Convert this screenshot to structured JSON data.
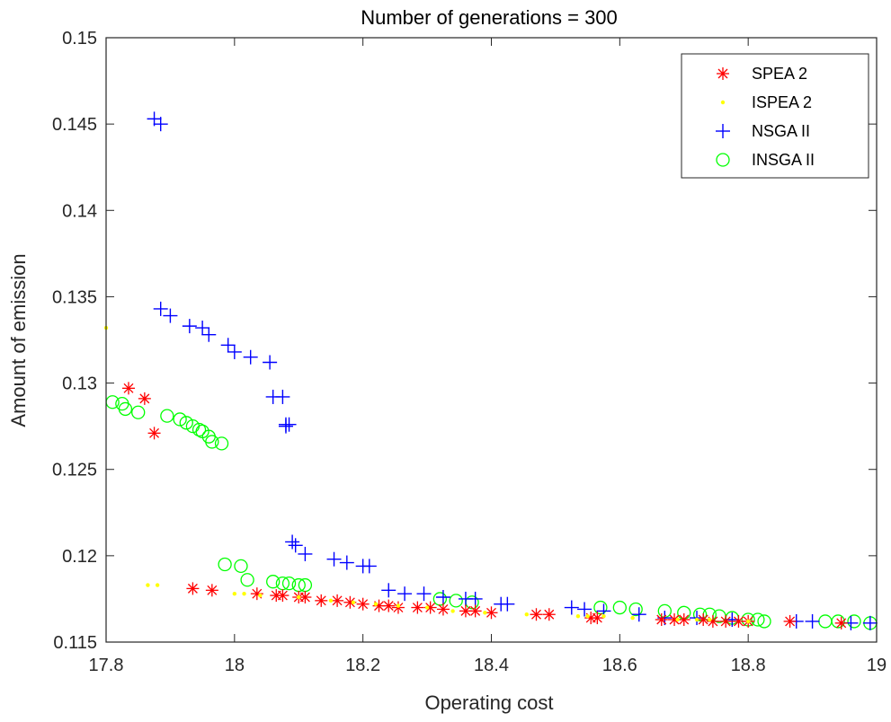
{
  "chart_data": {
    "type": "scatter",
    "title": "Number of generations = 300",
    "xlabel": "Operating cost",
    "ylabel": "Amount of emission",
    "xlim": [
      17.8,
      19
    ],
    "ylim": [
      0.115,
      0.15
    ],
    "xticks": [
      "17.8",
      "18",
      "18.2",
      "18.4",
      "18.6",
      "18.8",
      "19"
    ],
    "yticks": [
      "0.115",
      "0.12",
      "0.125",
      "0.13",
      "0.135",
      "0.14",
      "0.145",
      "0.15"
    ],
    "grid": false,
    "legend_position": "top-right",
    "series": [
      {
        "name": "SPEA 2",
        "marker": "asterisk",
        "color": "#ff0000",
        "x": [
          17.835,
          17.86,
          17.875,
          17.935,
          17.965,
          18.035,
          18.065,
          18.075,
          18.1,
          18.11,
          18.135,
          18.16,
          18.18,
          18.2,
          18.225,
          18.24,
          18.255,
          18.285,
          18.305,
          18.325,
          18.36,
          18.375,
          18.4,
          18.47,
          18.49,
          18.555,
          18.565,
          18.665,
          18.685,
          18.7,
          18.73,
          18.745,
          18.765,
          18.785,
          18.8,
          18.865,
          18.945
        ],
        "y": [
          0.1297,
          0.1291,
          0.1271,
          0.1181,
          0.118,
          0.1178,
          0.1177,
          0.1177,
          0.1176,
          0.1176,
          0.1174,
          0.1174,
          0.1173,
          0.1172,
          0.1171,
          0.1171,
          0.117,
          0.117,
          0.117,
          0.1169,
          0.1168,
          0.1168,
          0.1167,
          0.1166,
          0.1166,
          0.1164,
          0.1164,
          0.1163,
          0.1163,
          0.1163,
          0.1163,
          0.1162,
          0.1162,
          0.1162,
          0.1162,
          0.1162,
          0.1161
        ]
      },
      {
        "name": "ISPEA 2",
        "marker": "dot",
        "color": "#ffff00",
        "x": [
          17.8,
          17.865,
          17.88,
          18.0,
          18.015,
          18.04,
          18.1,
          18.15,
          18.185,
          18.22,
          18.255,
          18.3,
          18.34,
          18.39,
          18.455,
          18.535,
          18.55,
          18.575,
          18.62,
          18.69,
          18.72,
          18.74,
          18.8
        ],
        "y": [
          0.1332,
          0.1183,
          0.1183,
          0.1178,
          0.1178,
          0.1177,
          0.1176,
          0.1174,
          0.1173,
          0.1172,
          0.1171,
          0.117,
          0.1168,
          0.1167,
          0.1166,
          0.1165,
          0.1165,
          0.1165,
          0.1164,
          0.1163,
          0.1163,
          0.1163,
          0.1162
        ]
      },
      {
        "name": "NSGA II",
        "marker": "plus",
        "color": "#0000ff",
        "x": [
          17.875,
          17.885,
          17.885,
          17.9,
          17.93,
          17.95,
          17.96,
          17.99,
          18.0,
          18.025,
          18.055,
          18.06,
          18.075,
          18.08,
          18.08,
          18.085,
          18.09,
          18.095,
          18.11,
          18.155,
          18.175,
          18.2,
          18.21,
          18.24,
          18.265,
          18.295,
          18.325,
          18.36,
          18.375,
          18.415,
          18.425,
          18.525,
          18.545,
          18.575,
          18.63,
          18.67,
          18.72,
          18.775,
          18.875,
          18.9,
          18.96,
          18.99
        ],
        "y": [
          0.1453,
          0.145,
          0.1343,
          0.1339,
          0.1333,
          0.1332,
          0.1328,
          0.1322,
          0.1318,
          0.1315,
          0.1312,
          0.1292,
          0.1292,
          0.1276,
          0.1275,
          0.1276,
          0.1208,
          0.1206,
          0.1201,
          0.1198,
          0.1196,
          0.1194,
          0.1194,
          0.118,
          0.1178,
          0.1178,
          0.1176,
          0.1175,
          0.1175,
          0.1172,
          0.1172,
          0.117,
          0.1169,
          0.1168,
          0.1166,
          0.1164,
          0.1164,
          0.1163,
          0.1162,
          0.1162,
          0.1161,
          0.1161
        ]
      },
      {
        "name": "INSGA II",
        "marker": "circle",
        "color": "#00ff00",
        "x": [
          17.81,
          17.825,
          17.83,
          17.85,
          17.895,
          17.915,
          17.925,
          17.935,
          17.945,
          17.95,
          17.96,
          17.965,
          17.98,
          17.985,
          18.01,
          18.02,
          18.06,
          18.075,
          18.085,
          18.1,
          18.11,
          18.32,
          18.345,
          18.37,
          18.57,
          18.6,
          18.625,
          18.67,
          18.7,
          18.725,
          18.74,
          18.755,
          18.775,
          18.8,
          18.815,
          18.825,
          18.92,
          18.94,
          18.965,
          18.99
        ],
        "y": [
          0.1289,
          0.1288,
          0.1285,
          0.1283,
          0.1281,
          0.1279,
          0.1277,
          0.1275,
          0.1273,
          0.1272,
          0.1269,
          0.1266,
          0.1265,
          0.1195,
          0.1194,
          0.1186,
          0.1185,
          0.1184,
          0.1184,
          0.1183,
          0.1183,
          0.1175,
          0.1174,
          0.1173,
          0.117,
          0.117,
          0.1169,
          0.1168,
          0.1167,
          0.1166,
          0.1166,
          0.1165,
          0.1164,
          0.1163,
          0.1163,
          0.1162,
          0.1162,
          0.1162,
          0.1162,
          0.1161
        ]
      }
    ]
  }
}
